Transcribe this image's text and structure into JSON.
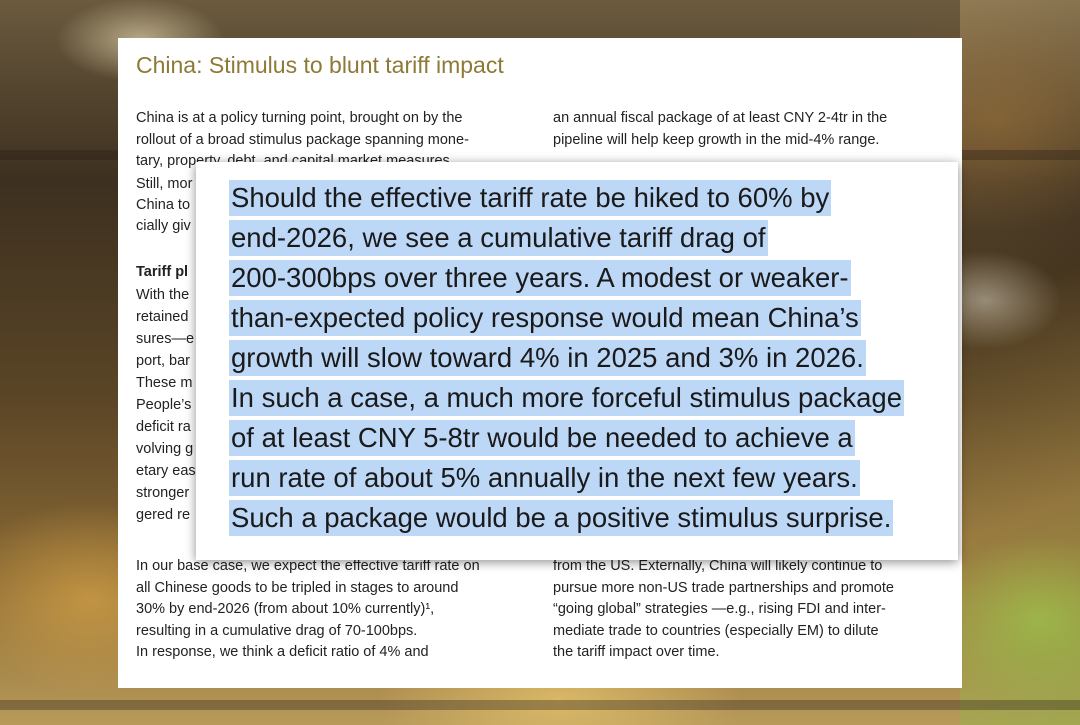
{
  "document": {
    "title": "China: Stimulus to blunt tariff impact",
    "left_top_lines": [
      "China is at a policy turning point, brought on by the",
      "rollout of a broad stimulus package spanning mone-",
      "tary, property, debt, and capital market measures."
    ],
    "left_fragments": [
      "Still, mor",
      "China to",
      "cially giv"
    ],
    "subheading_fragment": "Tariff pl",
    "left_middle_fragments": [
      "With the",
      "retained",
      "sures—e",
      "port, bar",
      "These m",
      "People’s",
      "deficit ra",
      "volving g",
      "etary eas",
      "stronger",
      "gered re"
    ],
    "right_top_lines": [
      "an annual fiscal package of at least CNY 2-4tr in the",
      "pipeline will help keep growth in the mid-4% range."
    ],
    "left_bottom_lines": [
      "In our base case, we expect the effective tariff rate on",
      "all Chinese goods to be tripled in stages to around",
      "30% by end-2026 (from about 10% currently)¹,",
      "resulting in a cumulative drag of 70-100bps.",
      "In response, we think a deficit ratio of 4% and"
    ],
    "right_bottom_lines": [
      "from the US. Externally, China will likely continue to",
      "pursue more non-US trade partnerships and promote",
      "“going global” strategies —e.g., rising FDI and inter-",
      "mediate trade to countries (especially EM) to dilute",
      "the tariff impact over time."
    ]
  },
  "callout": {
    "lines": [
      "Should the effective tariff rate be hiked to 60% by",
      "end-2026, we see a cumulative tariff drag of",
      "200-300bps over three years. A modest or weaker-",
      "than-expected policy response would mean China’s",
      "growth will slow toward 4% in 2025 and 3% in 2026.",
      "In such a case, a much more forceful stimulus package",
      "of at least CNY 5-8tr would be needed to achieve a",
      "run rate of about 5% annually in the next few years.",
      "Such a package would be a positive stimulus surprise."
    ],
    "highlight_color": "#bdd7f7"
  },
  "colors": {
    "title": "#8c7a36",
    "body_text": "#222222"
  }
}
